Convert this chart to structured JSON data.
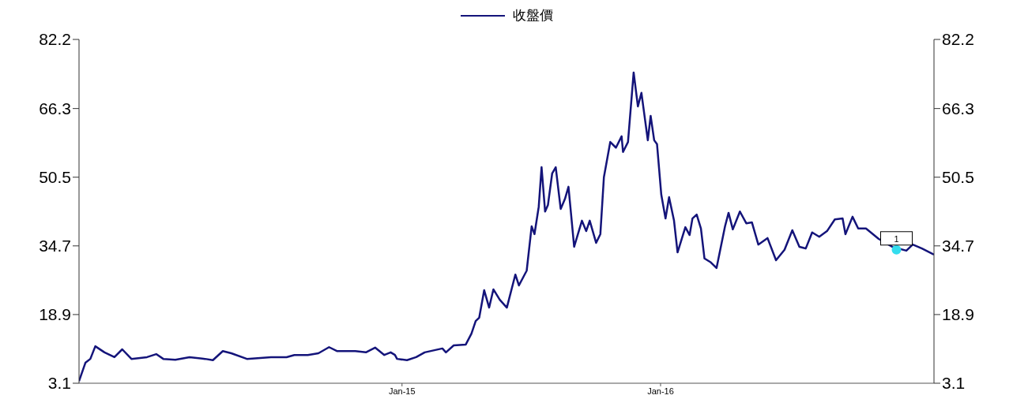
{
  "chart_data": {
    "type": "line",
    "x": [
      "2013-10-02",
      "2013-10-11",
      "2013-10-18",
      "2013-10-25",
      "2013-11-07",
      "2013-11-21",
      "2013-12-02",
      "2013-12-15",
      "2014-01-06",
      "2014-01-19",
      "2014-01-29",
      "2014-02-15",
      "2014-03-07",
      "2014-03-29",
      "2014-04-09",
      "2014-04-23",
      "2014-05-05",
      "2014-05-27",
      "2014-06-30",
      "2014-07-22",
      "2014-08-02",
      "2014-08-21",
      "2014-09-05",
      "2014-09-20",
      "2014-10-01",
      "2014-10-27",
      "2014-11-11",
      "2014-11-24",
      "2014-12-07",
      "2014-12-16",
      "2014-12-22",
      "2014-12-25",
      "2015-01-08",
      "2015-01-21",
      "2015-02-02",
      "2015-02-27",
      "2015-03-04",
      "2015-03-15",
      "2015-04-01",
      "2015-04-09",
      "2015-04-15",
      "2015-04-20",
      "2015-04-27",
      "2015-05-04",
      "2015-05-10",
      "2015-05-19",
      "2015-05-29",
      "2015-06-10",
      "2015-06-15",
      "2015-06-26",
      "2015-07-03",
      "2015-07-07",
      "2015-07-13",
      "2015-07-17",
      "2015-07-22",
      "2015-07-26",
      "2015-08-01",
      "2015-08-06",
      "2015-08-13",
      "2015-08-19",
      "2015-08-24",
      "2015-09-01",
      "2015-09-12",
      "2015-09-18",
      "2015-09-23",
      "2015-10-02",
      "2015-10-08",
      "2015-10-13",
      "2015-10-22",
      "2015-10-30",
      "2015-11-07",
      "2015-11-09",
      "2015-11-16",
      "2015-11-24",
      "2015-11-30",
      "2015-12-05",
      "2015-12-14",
      "2015-12-18",
      "2015-12-23",
      "2015-12-27",
      "2016-01-02",
      "2016-01-08",
      "2016-01-13",
      "2016-01-20",
      "2016-01-25",
      "2016-02-05",
      "2016-02-11",
      "2016-02-15",
      "2016-02-21",
      "2016-02-27",
      "2016-03-03",
      "2016-03-12",
      "2016-03-20",
      "2016-04-01",
      "2016-04-06",
      "2016-04-12",
      "2016-04-22",
      "2016-05-01",
      "2016-05-09",
      "2016-05-18",
      "2016-05-31",
      "2016-06-12",
      "2016-06-24",
      "2016-07-05",
      "2016-07-15",
      "2016-07-24",
      "2016-08-02",
      "2016-08-12",
      "2016-08-23",
      "2016-09-03",
      "2016-09-14",
      "2016-09-18",
      "2016-09-28",
      "2016-10-06",
      "2016-10-17",
      "2016-11-04",
      "2016-11-23",
      "2016-12-13",
      "2016-12-22",
      "2017-01-04",
      "2017-01-21"
    ],
    "series": [
      {
        "name": "收盤價",
        "color": "#14147a",
        "values": [
          3.6,
          7.8,
          8.7,
          11.6,
          10.2,
          9.1,
          10.9,
          8.7,
          9.1,
          9.8,
          8.7,
          8.5,
          9.1,
          8.7,
          8.4,
          10.5,
          10.0,
          8.7,
          9.1,
          9.1,
          9.6,
          9.6,
          10.0,
          11.4,
          10.5,
          10.5,
          10.2,
          11.3,
          9.6,
          10.2,
          9.6,
          8.7,
          8.4,
          9.1,
          10.2,
          11.1,
          10.2,
          11.8,
          12.0,
          14.5,
          17.4,
          18.2,
          24.5,
          20.5,
          24.7,
          22.3,
          20.5,
          28.1,
          25.6,
          29.0,
          39.2,
          37.4,
          43.7,
          52.8,
          42.6,
          44.1,
          51.4,
          52.8,
          43.2,
          45.5,
          48.3,
          34.5,
          40.5,
          38.1,
          40.5,
          35.4,
          37.4,
          50.5,
          58.6,
          57.3,
          59.9,
          56.3,
          58.6,
          74.6,
          66.8,
          69.9,
          59.0,
          64.6,
          59.0,
          58.1,
          46.5,
          41.0,
          45.9,
          40.5,
          33.2,
          39.0,
          37.2,
          41.0,
          41.9,
          38.7,
          31.8,
          30.9,
          29.6,
          39.2,
          42.3,
          38.5,
          42.6,
          39.9,
          40.1,
          35.0,
          36.5,
          31.4,
          33.8,
          38.3,
          34.5,
          34.1,
          37.8,
          36.8,
          38.1,
          40.8,
          41.0,
          37.4,
          41.4,
          38.7,
          38.7,
          36.3,
          34.5,
          33.6,
          35.0,
          34.1,
          32.7
        ]
      }
    ],
    "xlim": [
      "2013-10-02",
      "2017-01-21"
    ],
    "xticks": [
      {
        "value": "2015-01-01",
        "label": "Jan-15"
      },
      {
        "value": "2016-01-01",
        "label": "Jan-16"
      }
    ],
    "ylim": [
      3.1,
      82.2
    ],
    "yticks": [
      3.1,
      18.9,
      34.7,
      50.5,
      66.3,
      82.2
    ],
    "y2lim": [
      3.1,
      82.2
    ],
    "y2ticks": [
      3.1,
      18.9,
      34.7,
      50.5,
      66.3,
      82.2
    ],
    "annotations": [
      {
        "text": "1",
        "x": "2016-11-29",
        "y": 33.8
      }
    ],
    "legend": "top",
    "grid": false,
    "marker": "none",
    "line_style": "solid"
  }
}
